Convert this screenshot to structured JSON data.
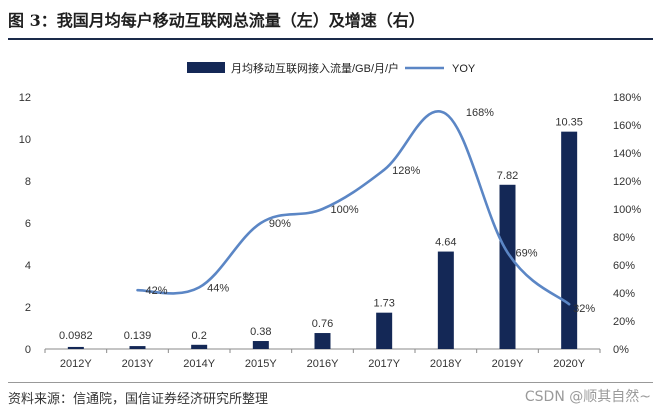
{
  "page": {
    "title": "图 3：我国月均每户移动互联网总流量（左）及增速（右）",
    "source": "资料来源：信通院，国信证券经济研究所整理",
    "watermark": "CSDN @顺其自然~"
  },
  "chart_data": {
    "type": "bar+line",
    "categories": [
      "2012Y",
      "2013Y",
      "2014Y",
      "2015Y",
      "2016Y",
      "2017Y",
      "2018Y",
      "2019Y",
      "2020Y"
    ],
    "series": [
      {
        "name": "月均移动互联网接入流量/GB/月/户",
        "type": "bar",
        "axis": "left",
        "values": [
          0.0982,
          0.139,
          0.2,
          0.38,
          0.76,
          1.73,
          4.64,
          7.82,
          10.35
        ],
        "labels": [
          "0.0982",
          "0.139",
          "0.2",
          "0.38",
          "0.76",
          "1.73",
          "4.64",
          "7.82",
          "10.35"
        ]
      },
      {
        "name": "YOY",
        "type": "line",
        "axis": "right",
        "values": [
          null,
          42,
          44,
          90,
          100,
          128,
          168,
          69,
          32
        ],
        "labels": [
          null,
          "42%",
          "44%",
          "90%",
          "100%",
          "128%",
          "168%",
          "69%",
          "32%"
        ]
      }
    ],
    "y_left": {
      "min": 0,
      "max": 12,
      "ticks": [
        "0",
        "2",
        "4",
        "6",
        "8",
        "10",
        "12"
      ]
    },
    "y_right": {
      "min": 0,
      "max": 180,
      "ticks": [
        "0%",
        "20%",
        "40%",
        "60%",
        "80%",
        "100%",
        "120%",
        "140%",
        "160%",
        "180%"
      ]
    },
    "legend_position": "top",
    "grid": false,
    "colors": {
      "bar": "#142856",
      "line": "#5b86c5"
    }
  }
}
